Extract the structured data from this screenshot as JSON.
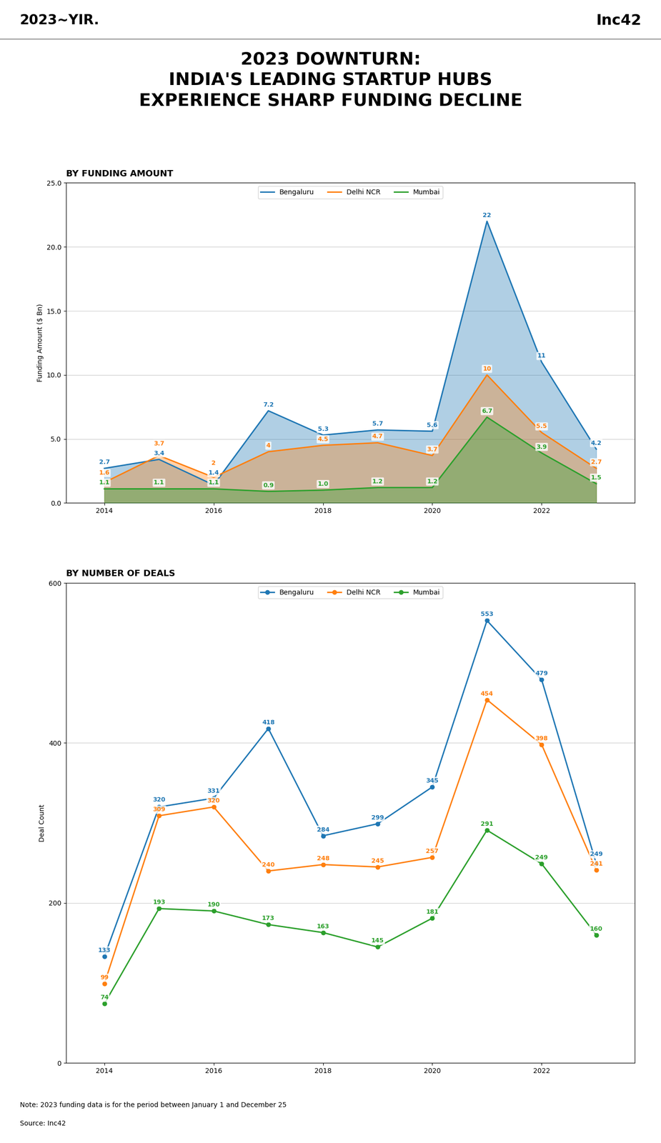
{
  "title": "2023 DOWNTURN:\nINDIA'S LEADING STARTUP HUBS\nEXPERIENCE SHARP FUNDING DECLINE",
  "annotations": [
    {
      "text": "2023~YIR."
    },
    {
      "text": "Inc42"
    },
    {
      "text": "Note: 2023 funding data is for the period between January 1 and December 25"
    },
    {
      "text": "Source: Inc42"
    }
  ],
  "chart_data": [
    {
      "type": "area",
      "title": "BY FUNDING AMOUNT",
      "ylabel": "Funding Amount ($ Bn)",
      "x": [
        2014,
        2015,
        2016,
        2017,
        2018,
        2019,
        2020,
        2021,
        2022,
        2023
      ],
      "xlim": [
        2013.3,
        2023.7
      ],
      "xticks": [
        2014,
        2016,
        2018,
        2020,
        2022
      ],
      "ylim": [
        0,
        25.0
      ],
      "yticks": [
        {
          "value": 0.0,
          "label": "0.0"
        },
        {
          "value": 5.0,
          "label": "5.0"
        },
        {
          "value": 10.0,
          "label": "10.0"
        },
        {
          "value": 15.0,
          "label": "15.0"
        },
        {
          "value": 20.0,
          "label": "20.0"
        },
        {
          "value": 25.0,
          "label": "25.0"
        }
      ],
      "grid": true,
      "legend": "upper center",
      "data_labels": true,
      "series": [
        {
          "name": "Bengaluru",
          "values": [
            2.7,
            3.4,
            1.4,
            7.2,
            5.3,
            5.7,
            5.6,
            22.0,
            11.0,
            4.2
          ],
          "value_labels": [
            "2.7",
            "3.4",
            "1.4",
            "7.2",
            "5.3",
            "5.7",
            "5.6",
            "22",
            "11",
            "4.2"
          ]
        },
        {
          "name": "Delhi NCR",
          "values": [
            1.6,
            3.7,
            2.0,
            4.0,
            4.5,
            4.7,
            3.7,
            10.0,
            5.5,
            2.7
          ],
          "value_labels": [
            "1.6",
            "3.7",
            "2",
            "4",
            "4.5",
            "4.7",
            "3.7",
            "10",
            "5.5",
            "2.7"
          ]
        },
        {
          "name": "Mumbai",
          "values": [
            1.1,
            1.1,
            1.1,
            0.9,
            1.0,
            1.2,
            1.2,
            6.7,
            3.9,
            1.5
          ],
          "value_labels": [
            "1.1",
            "1.1",
            "1.1",
            "0.9",
            "1.0",
            "1.2",
            "1.2",
            "6.7",
            "3.9",
            "1.5"
          ]
        }
      ]
    },
    {
      "type": "line",
      "title": "BY NUMBER OF DEALS",
      "marker": "o",
      "ylabel": "Deal Count",
      "x": [
        2014,
        2015,
        2016,
        2017,
        2018,
        2019,
        2020,
        2021,
        2022,
        2023
      ],
      "xlim": [
        2013.3,
        2023.7
      ],
      "xticks": [
        2014,
        2016,
        2018,
        2020,
        2022
      ],
      "ylim": [
        0,
        600
      ],
      "yticks": [
        0,
        200,
        400,
        600
      ],
      "grid": true,
      "legend": "upper center",
      "data_labels": true,
      "series": [
        {
          "name": "Bengaluru",
          "values": [
            133,
            320,
            331,
            418,
            284,
            299,
            345,
            553,
            479,
            249
          ]
        },
        {
          "name": "Delhi NCR",
          "values": [
            99,
            309,
            320,
            240,
            248,
            245,
            257,
            454,
            398,
            241
          ]
        },
        {
          "name": "Mumbai",
          "values": [
            74,
            193,
            190,
            173,
            163,
            145,
            181,
            291,
            249,
            160
          ]
        }
      ]
    }
  ]
}
